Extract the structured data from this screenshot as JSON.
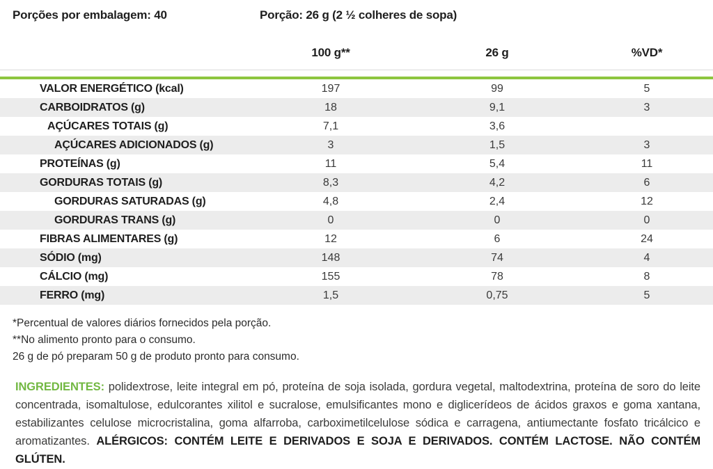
{
  "meta": {
    "servings_per_package": "Porções por embalagem: 40",
    "serving_size": "Porção: 26 g (2 ½ colheres de sopa)"
  },
  "table": {
    "columns": [
      "100 g**",
      "26 g",
      "%VD*"
    ],
    "rows": [
      {
        "label": "VALOR ENERGÉTICO (kcal)",
        "indent": 0,
        "per100g": "197",
        "per26g": "99",
        "vd": "5"
      },
      {
        "label": "CARBOIDRATOS (g)",
        "indent": 0,
        "per100g": "18",
        "per26g": "9,1",
        "vd": "3"
      },
      {
        "label": "AÇÚCARES TOTAIS (g)",
        "indent": 1,
        "per100g": "7,1",
        "per26g": "3,6",
        "vd": ""
      },
      {
        "label": "AÇÚCARES ADICIONADOS (g)",
        "indent": 2,
        "per100g": "3",
        "per26g": "1,5",
        "vd": "3"
      },
      {
        "label": "PROTEÍNAS (g)",
        "indent": 0,
        "per100g": "11",
        "per26g": "5,4",
        "vd": "11"
      },
      {
        "label": "GORDURAS TOTAIS (g)",
        "indent": 0,
        "per100g": "8,3",
        "per26g": "4,2",
        "vd": "6"
      },
      {
        "label": "GORDURAS SATURADAS (g)",
        "indent": 2,
        "per100g": "4,8",
        "per26g": "2,4",
        "vd": "12"
      },
      {
        "label": "GORDURAS TRANS (g)",
        "indent": 2,
        "per100g": "0",
        "per26g": "0",
        "vd": "0"
      },
      {
        "label": "FIBRAS ALIMENTARES (g)",
        "indent": 0,
        "per100g": "12",
        "per26g": "6",
        "vd": "24"
      },
      {
        "label": "SÓDIO (mg)",
        "indent": 0,
        "per100g": "148",
        "per26g": "74",
        "vd": "4"
      },
      {
        "label": "CÁLCIO (mg)",
        "indent": 0,
        "per100g": "155",
        "per26g": "78",
        "vd": "8"
      },
      {
        "label": "FERRO (mg)",
        "indent": 0,
        "per100g": "1,5",
        "per26g": "0,75",
        "vd": "5"
      }
    ]
  },
  "footnotes": [
    "*Percentual de valores diários fornecidos pela porção.",
    "**No alimento pronto para o consumo.",
    "26 g de pó preparam 50 g de produto pronto para consumo."
  ],
  "ingredients": {
    "heading": "INGREDIENTES:",
    "body": " polidextrose, leite integral em pó, proteína de soja isolada, gordura vegetal, maltodextrina, proteína de soro do leite concentrada, isomaltulose, edulcorantes xilitol e sucralose, emulsificantes mono e diglicerídeos de ácidos graxos e goma xantana, estabilizantes celulose microcristalina, goma alfarroba, carboximetilcelulose sódica e carragena, antiumectante fosfato tricálcico e aromatizantes. ",
    "allergens": "ALÉRGICOS: CONTÉM LEITE E DERIVADOS E SOJA E DERIVADOS. CONTÉM LACTOSE. NÃO CONTÉM GLÚTEN."
  },
  "colors": {
    "accent_green": "#8DC63F",
    "ingredients_green": "#72B842",
    "row_stripe": "#ECECEC",
    "text_dark": "#1E1E1E"
  }
}
